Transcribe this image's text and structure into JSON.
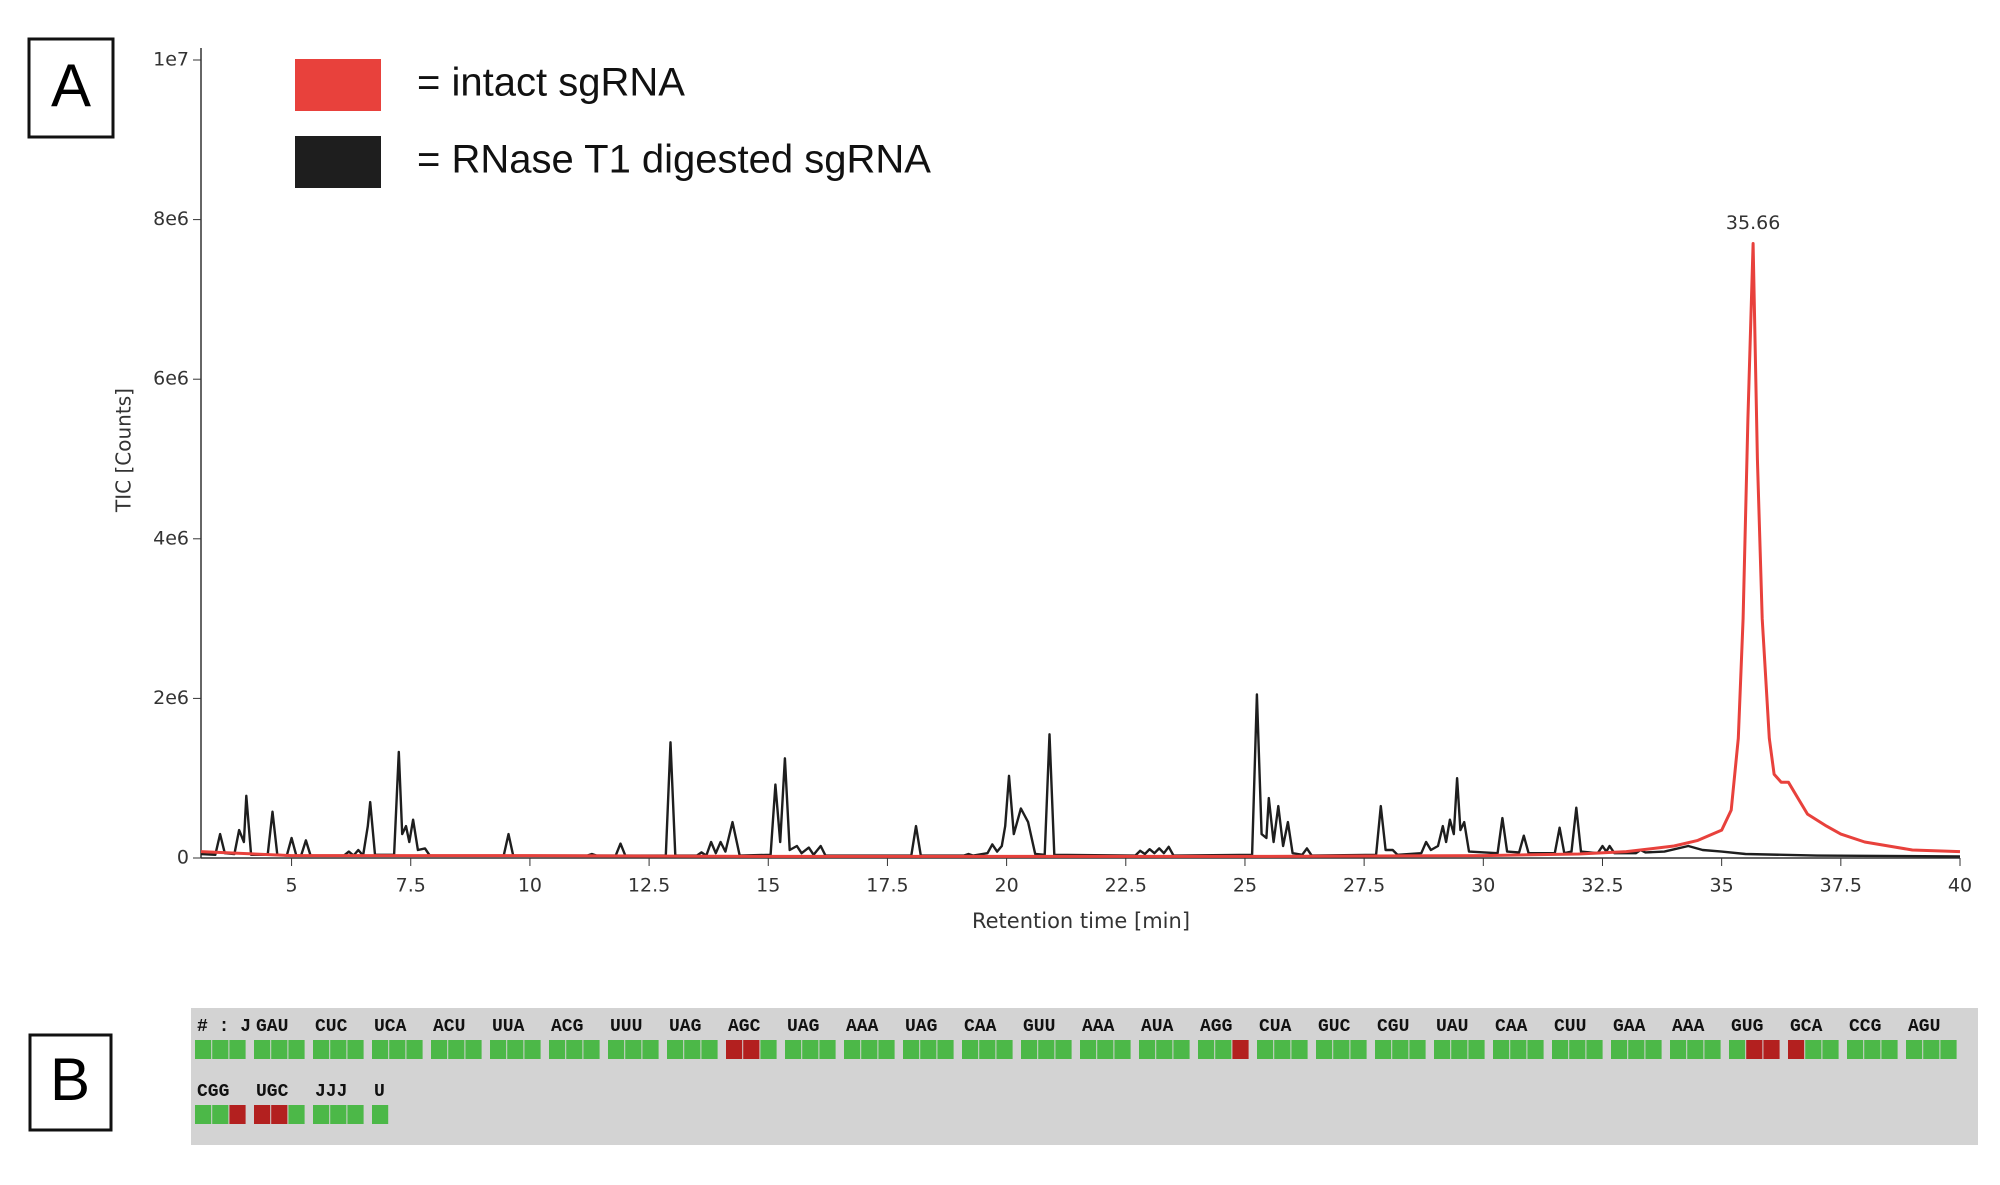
{
  "panel_labels": [
    "A",
    "B"
  ],
  "chart_data": {
    "type": "line",
    "xlabel": "Retention time [min]",
    "ylabel": "TIC [Counts]",
    "xlim": [
      3.1,
      40
    ],
    "ylim": [
      0,
      10000000
    ],
    "xticks": [
      5,
      7.5,
      10,
      12.5,
      15,
      17.5,
      20,
      22.5,
      25,
      27.5,
      30,
      32.5,
      35,
      37.5,
      40
    ],
    "yticks": [
      0,
      {
        "value": 2000000,
        "label": "2e6"
      },
      {
        "value": 4000000,
        "label": "4e6"
      },
      {
        "value": 6000000,
        "label": "6e6"
      },
      {
        "value": 8000000,
        "label": "8e6"
      },
      {
        "value": 10000000,
        "label": "1e7"
      }
    ],
    "legend": "top-left",
    "annotations": [
      {
        "text": "35.66",
        "x": 35.66,
        "y": 7700000
      }
    ],
    "series": [
      {
        "name": "= intact sgRNA",
        "color": "#e8413c",
        "x": [
          3.1,
          5,
          10,
          15,
          20,
          25,
          30,
          32,
          33,
          34,
          34.5,
          35,
          35.2,
          35.35,
          35.45,
          35.55,
          35.66,
          35.75,
          35.85,
          36.0,
          36.1,
          36.25,
          36.4,
          36.6,
          36.8,
          37.2,
          37.5,
          38,
          38.5,
          39,
          40
        ],
        "values": [
          80000,
          30000,
          30000,
          20000,
          20000,
          20000,
          30000,
          50000,
          80000,
          150000,
          220000,
          350000,
          600000,
          1500000,
          3000000,
          5500000,
          7700000,
          5000000,
          3000000,
          1500000,
          1050000,
          950000,
          950000,
          750000,
          550000,
          400000,
          300000,
          200000,
          150000,
          100000,
          80000
        ]
      },
      {
        "name": "= RNase T1 digested sgRNA",
        "color": "#1e1e1e",
        "x": [
          3.1,
          3.4,
          3.5,
          3.6,
          3.8,
          3.9,
          4.0,
          4.05,
          4.15,
          4.5,
          4.6,
          4.7,
          4.9,
          5.0,
          5.1,
          5.2,
          5.3,
          5.4,
          6.1,
          6.2,
          6.3,
          6.4,
          6.5,
          6.6,
          6.65,
          6.75,
          7.15,
          7.25,
          7.32,
          7.4,
          7.47,
          7.55,
          7.65,
          7.8,
          7.9,
          9.45,
          9.55,
          9.65,
          11.2,
          11.3,
          11.4,
          11.8,
          11.9,
          12.0,
          12.85,
          12.95,
          13.05,
          13.5,
          13.6,
          13.7,
          13.8,
          13.9,
          14.0,
          14.1,
          14.25,
          14.4,
          15.05,
          15.15,
          15.25,
          15.35,
          15.45,
          15.6,
          15.7,
          15.85,
          15.95,
          16.1,
          16.2,
          18.0,
          18.1,
          18.2,
          19.1,
          19.2,
          19.3,
          19.6,
          19.7,
          19.8,
          19.9,
          19.97,
          20.05,
          20.15,
          20.3,
          20.45,
          20.6,
          20.8,
          20.9,
          21.0,
          22.7,
          22.8,
          22.9,
          23.0,
          23.1,
          23.2,
          23.3,
          23.4,
          23.5,
          25.15,
          25.25,
          25.35,
          25.45,
          25.5,
          25.6,
          25.7,
          25.8,
          25.9,
          26.0,
          26.2,
          26.3,
          26.4,
          27.75,
          27.85,
          27.95,
          28.1,
          28.2,
          28.7,
          28.8,
          28.9,
          29.05,
          29.15,
          29.22,
          29.3,
          29.38,
          29.45,
          29.52,
          29.6,
          29.7,
          30.3,
          30.4,
          30.5,
          30.75,
          30.85,
          30.95,
          31.5,
          31.6,
          31.7,
          31.85,
          31.95,
          32.05,
          32.4,
          32.5,
          32.58,
          32.65,
          32.75,
          33.2,
          33.3,
          33.4,
          33.8,
          34.3,
          34.6,
          35.0,
          35.5,
          37,
          40
        ],
        "values": [
          50000,
          40000,
          300000,
          60000,
          50000,
          350000,
          200000,
          780000,
          40000,
          40000,
          580000,
          40000,
          30000,
          250000,
          30000,
          30000,
          220000,
          30000,
          30000,
          80000,
          30000,
          100000,
          30000,
          400000,
          700000,
          40000,
          40000,
          1330000,
          300000,
          400000,
          200000,
          480000,
          100000,
          120000,
          30000,
          30000,
          300000,
          30000,
          30000,
          50000,
          30000,
          30000,
          180000,
          30000,
          30000,
          1450000,
          30000,
          30000,
          70000,
          30000,
          200000,
          60000,
          200000,
          80000,
          450000,
          30000,
          40000,
          920000,
          200000,
          1250000,
          100000,
          150000,
          60000,
          130000,
          40000,
          150000,
          30000,
          30000,
          400000,
          30000,
          30000,
          50000,
          30000,
          60000,
          170000,
          80000,
          150000,
          400000,
          1030000,
          300000,
          620000,
          450000,
          50000,
          40000,
          1550000,
          40000,
          30000,
          90000,
          50000,
          110000,
          60000,
          120000,
          60000,
          140000,
          30000,
          40000,
          2050000,
          300000,
          250000,
          750000,
          200000,
          650000,
          150000,
          450000,
          60000,
          40000,
          120000,
          30000,
          40000,
          650000,
          100000,
          100000,
          40000,
          60000,
          200000,
          100000,
          150000,
          400000,
          200000,
          480000,
          300000,
          1000000,
          350000,
          450000,
          80000,
          60000,
          500000,
          80000,
          70000,
          280000,
          60000,
          60000,
          380000,
          60000,
          80000,
          630000,
          80000,
          60000,
          150000,
          80000,
          150000,
          60000,
          60000,
          100000,
          70000,
          80000,
          150000,
          100000,
          80000,
          50000,
          30000,
          20000
        ]
      }
    ]
  },
  "coverage": {
    "covered_color": "#4cb848",
    "uncovered_color": "#b3201f",
    "rows": [
      [
        {
          "label": "# : J",
          "cells": [
            true,
            true,
            true
          ]
        },
        {
          "label": "GAU",
          "cells": [
            true,
            true,
            true
          ]
        },
        {
          "label": "CUC",
          "cells": [
            true,
            true,
            true
          ]
        },
        {
          "label": "UCA",
          "cells": [
            true,
            true,
            true
          ]
        },
        {
          "label": "ACU",
          "cells": [
            true,
            true,
            true
          ]
        },
        {
          "label": "UUA",
          "cells": [
            true,
            true,
            true
          ]
        },
        {
          "label": "ACG",
          "cells": [
            true,
            true,
            true
          ]
        },
        {
          "label": "UUU",
          "cells": [
            true,
            true,
            true
          ]
        },
        {
          "label": "UAG",
          "cells": [
            true,
            true,
            true
          ]
        },
        {
          "label": "AGC",
          "cells": [
            false,
            false,
            true
          ]
        },
        {
          "label": "UAG",
          "cells": [
            true,
            true,
            true
          ]
        },
        {
          "label": "AAA",
          "cells": [
            true,
            true,
            true
          ]
        },
        {
          "label": "UAG",
          "cells": [
            true,
            true,
            true
          ]
        },
        {
          "label": "CAA",
          "cells": [
            true,
            true,
            true
          ]
        },
        {
          "label": "GUU",
          "cells": [
            true,
            true,
            true
          ]
        },
        {
          "label": "AAA",
          "cells": [
            true,
            true,
            true
          ]
        },
        {
          "label": "AUA",
          "cells": [
            true,
            true,
            true
          ]
        },
        {
          "label": "AGG",
          "cells": [
            true,
            true,
            false
          ]
        },
        {
          "label": "CUA",
          "cells": [
            true,
            true,
            true
          ]
        },
        {
          "label": "GUC",
          "cells": [
            true,
            true,
            true
          ]
        },
        {
          "label": "CGU",
          "cells": [
            true,
            true,
            true
          ]
        },
        {
          "label": "UAU",
          "cells": [
            true,
            true,
            true
          ]
        },
        {
          "label": "CAA",
          "cells": [
            true,
            true,
            true
          ]
        },
        {
          "label": "CUU",
          "cells": [
            true,
            true,
            true
          ]
        },
        {
          "label": "GAA",
          "cells": [
            true,
            true,
            true
          ]
        },
        {
          "label": "AAA",
          "cells": [
            true,
            true,
            true
          ]
        },
        {
          "label": "GUG",
          "cells": [
            true,
            false,
            false
          ]
        },
        {
          "label": "GCA",
          "cells": [
            false,
            true,
            true
          ]
        },
        {
          "label": "CCG",
          "cells": [
            true,
            true,
            true
          ]
        },
        {
          "label": "AGU",
          "cells": [
            true,
            true,
            true
          ]
        }
      ],
      [
        {
          "label": "CGG",
          "cells": [
            true,
            true,
            false
          ]
        },
        {
          "label": "UGC",
          "cells": [
            false,
            false,
            true
          ]
        },
        {
          "label": "JJJ",
          "cells": [
            true,
            true,
            true
          ]
        },
        {
          "label": "U",
          "cells": [
            true
          ]
        }
      ]
    ]
  }
}
